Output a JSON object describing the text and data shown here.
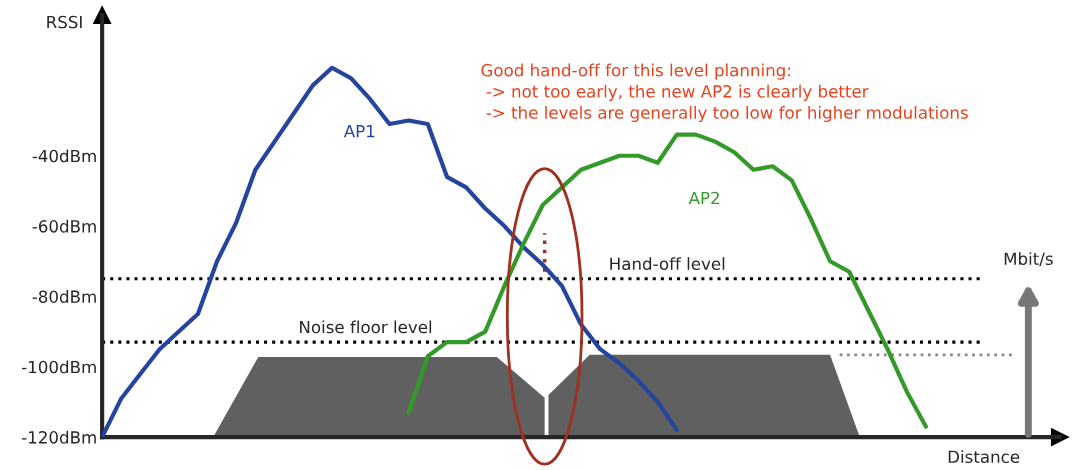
{
  "chart_data": {
    "type": "line",
    "xlabel": "Distance",
    "ylabel": "RSSI",
    "y2label": "Mbit/s",
    "categories": [
      null,
      null,
      null,
      null,
      null,
      null,
      null,
      null,
      null,
      null,
      null,
      null,
      null,
      null,
      null,
      null,
      null,
      null,
      null,
      null,
      null,
      null,
      null,
      null,
      null,
      null,
      null,
      null,
      null,
      null,
      null,
      null,
      null,
      null,
      null,
      null,
      null,
      null,
      null,
      null,
      null,
      null,
      null,
      null,
      null,
      null,
      null,
      null,
      null,
      null,
      null
    ],
    "ylim": [
      -120,
      0
    ],
    "yticks": [
      {
        "value": -40,
        "label": "-40dBm"
      },
      {
        "value": -60,
        "label": "-60dBm"
      },
      {
        "value": -80,
        "label": "-80dBm"
      },
      {
        "value": -100,
        "label": "-100dBm"
      },
      {
        "value": -120,
        "label": "-120dBm"
      }
    ],
    "tick_labels": "y",
    "series": [
      {
        "name": "AP1",
        "color": "#2444a0",
        "values": [
          -120,
          -109,
          -102,
          -95,
          -90,
          -85,
          -70,
          -59,
          -44,
          -36,
          -28,
          -20,
          -15,
          -18,
          -24,
          -31,
          -30,
          -31,
          -46,
          -49,
          -55,
          -60,
          -66,
          -71,
          -77,
          -88,
          -95,
          -99,
          -104,
          -110,
          -118,
          null,
          null,
          null,
          null,
          null,
          null,
          null,
          null,
          null,
          null,
          null,
          null,
          null,
          null,
          null,
          null,
          null,
          null,
          null,
          null
        ]
      },
      {
        "name": "AP2",
        "color": "#339a2a",
        "values": [
          null,
          null,
          null,
          null,
          null,
          null,
          null,
          null,
          null,
          null,
          null,
          null,
          null,
          null,
          null,
          null,
          -113,
          -97,
          -93,
          -93,
          -90,
          -77,
          -65,
          -54,
          -49,
          -44,
          -42,
          -40,
          -40,
          -42,
          -34,
          -34,
          -36,
          -39,
          -44,
          -43,
          -47,
          -58,
          -70,
          -73,
          -84,
          -95,
          -107,
          -117,
          null,
          null,
          null,
          null,
          null,
          null,
          null
        ]
      }
    ],
    "ref_lines": [
      {
        "axis": "y",
        "value": -75,
        "label": "Hand-off level",
        "color": "#000000",
        "line_style": "dotted"
      },
      {
        "axis": "y",
        "value": -93,
        "label": "Noise floor level",
        "color": "#000000",
        "line_style": "dotted"
      }
    ],
    "annotations": [
      "Good hand-off for this level planning:\n -> not too early, the new AP2 is clearly better\n -> the levels are generally too low for higher modulations"
    ]
  }
}
